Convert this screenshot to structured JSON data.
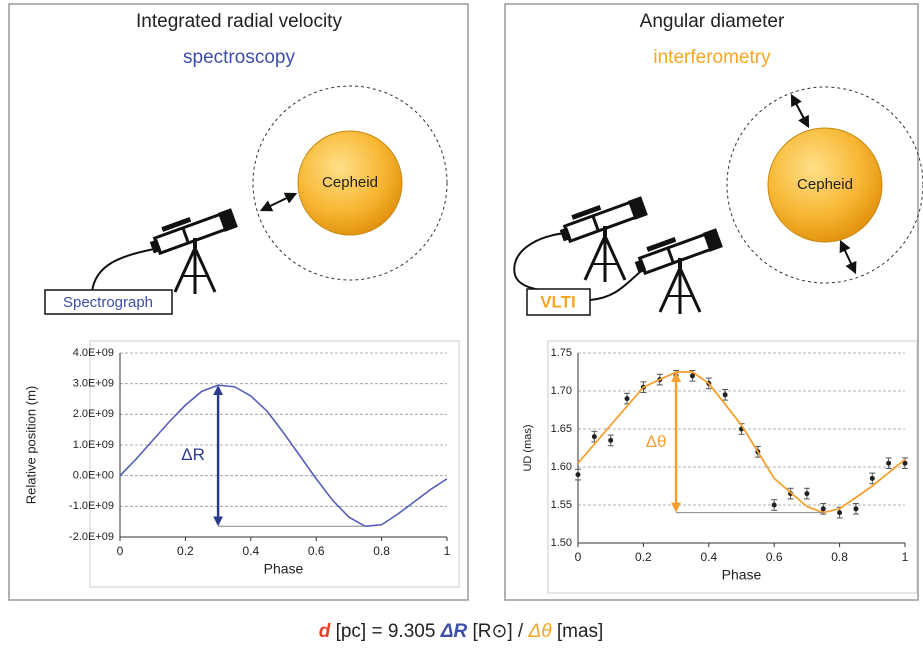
{
  "panels": [
    {
      "title": "Integrated radial velocity",
      "subtitle": "spectroscopy",
      "subtitle_color": "#3d4fa8",
      "star_label": "Cepheid",
      "instrument_label": "Spectrograph",
      "annotation": "ΔR"
    },
    {
      "title": "Angular diameter",
      "subtitle": "interferometry",
      "subtitle_color": "#f5a623",
      "star_label": "Cepheid",
      "instrument_label": "VLTI",
      "annotation": "Δθ"
    }
  ],
  "chart_data": [
    {
      "type": "line",
      "xlabel": "Phase",
      "ylabel": "Relative position (m)",
      "color": "#5560b8",
      "x": [
        0,
        0.05,
        0.1,
        0.15,
        0.2,
        0.25,
        0.3,
        0.35,
        0.4,
        0.45,
        0.5,
        0.55,
        0.6,
        0.65,
        0.7,
        0.75,
        0.8,
        0.85,
        0.9,
        0.95,
        1
      ],
      "values": [
        0,
        550000000,
        1150000000,
        1750000000,
        2300000000,
        2750000000,
        2950000000,
        2900000000,
        2600000000,
        2100000000,
        1400000000,
        650000000,
        -100000000,
        -800000000,
        -1350000000,
        -1650000000,
        -1600000000,
        -1250000000,
        -850000000,
        -450000000,
        -100000000
      ],
      "xlim": [
        0,
        1
      ],
      "xticks": [
        0,
        0.2,
        0.4,
        0.6,
        0.8,
        1
      ],
      "ylim": [
        -2000000000,
        4000000000
      ],
      "yticks": [
        {
          "value": -2000000000,
          "label": "-2.0E+09"
        },
        {
          "value": -1000000000,
          "label": "-1.0E+09"
        },
        {
          "value": 0,
          "label": "0.0E+00"
        },
        {
          "value": 1000000000,
          "label": "1.0E+09"
        },
        {
          "value": 2000000000,
          "label": "2.0E+09"
        },
        {
          "value": 3000000000,
          "label": "3.0E+09"
        },
        {
          "value": 4000000000,
          "label": "4.0E+09"
        }
      ],
      "grid": true
    },
    {
      "type": "scatter",
      "xlabel": "Phase",
      "ylabel": "UD (mas)",
      "series": [
        {
          "type": "scatter",
          "color": "#222222",
          "x": [
            0,
            0.05,
            0.1,
            0.15,
            0.2,
            0.25,
            0.3,
            0.35,
            0.4,
            0.45,
            0.5,
            0.55,
            0.6,
            0.65,
            0.7,
            0.75,
            0.8,
            0.85,
            0.9,
            0.95,
            1
          ],
          "values": [
            1.59,
            1.64,
            1.635,
            1.69,
            1.705,
            1.715,
            1.72,
            1.72,
            1.71,
            1.695,
            1.65,
            1.62,
            1.55,
            1.565,
            1.565,
            1.545,
            1.54,
            1.545,
            1.585,
            1.605,
            1.605
          ],
          "errors": [
            0.007,
            0.007,
            0.007,
            0.007,
            0.007,
            0.007,
            0.007,
            0.007,
            0.007,
            0.007,
            0.007,
            0.007,
            0.007,
            0.007,
            0.007,
            0.007,
            0.007,
            0.007,
            0.007,
            0.007,
            0.007
          ]
        },
        {
          "type": "line",
          "color": "#f5a030",
          "x": [
            0,
            0.1,
            0.2,
            0.3,
            0.35,
            0.4,
            0.5,
            0.6,
            0.7,
            0.75,
            0.8,
            0.9,
            1
          ],
          "values": [
            1.605,
            1.655,
            1.705,
            1.725,
            1.725,
            1.71,
            1.655,
            1.585,
            1.548,
            1.54,
            1.545,
            1.575,
            1.61
          ]
        }
      ],
      "xlim": [
        0,
        1
      ],
      "xticks": [
        0,
        0.2,
        0.4,
        0.6,
        0.8,
        1
      ],
      "ylim": [
        1.5,
        1.75
      ],
      "yticks": [
        {
          "value": 1.5,
          "label": "1.50"
        },
        1.55,
        {
          "value": 1.6,
          "label": "1.60"
        },
        1.65,
        {
          "value": 1.7,
          "label": "1.70"
        },
        1.75
      ],
      "grid": true
    }
  ],
  "formula": [
    {
      "text": "d",
      "color": "#e8412c",
      "style": "bold-italic"
    },
    {
      "text": " [pc] = 9.305 ",
      "color": "#222222",
      "style": "normal"
    },
    {
      "text": "ΔR",
      "color": "#3d4fa8",
      "style": "bold-italic"
    },
    {
      "text": " [R⊙] / ",
      "color": "#222222",
      "style": "normal"
    },
    {
      "text": "Δθ",
      "color": "#f5a623",
      "style": "italic"
    },
    {
      "text": " [mas]",
      "color": "#222222",
      "style": "normal"
    }
  ]
}
